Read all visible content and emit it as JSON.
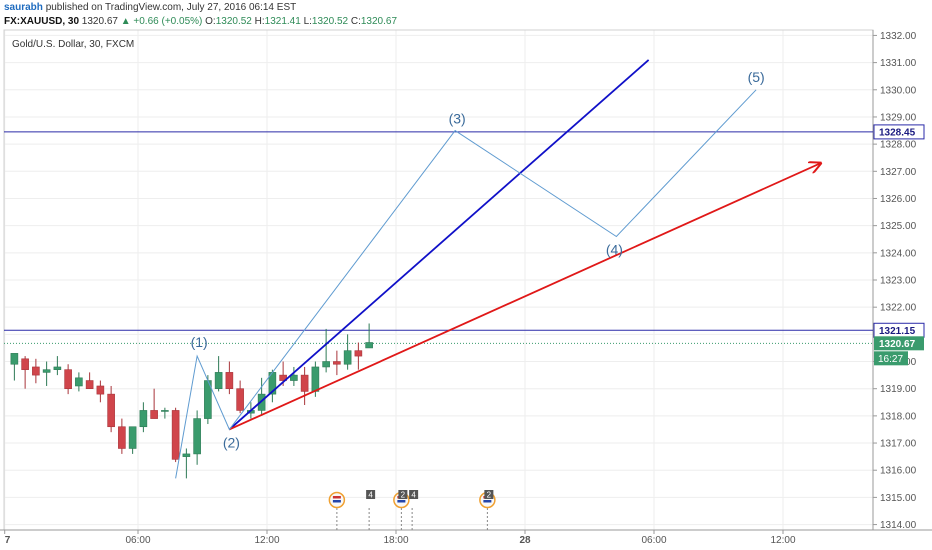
{
  "header": {
    "author": "saurabh",
    "published": "published on TradingView.com, July 27, 2016 06:14 EST",
    "symbol": "FX:XAUUSD, 30",
    "last": "1320.67",
    "change": "▲ +0.66 (+0.05%)",
    "o_label": "O:",
    "o": "1320.52",
    "h_label": "H:",
    "h": "1321.41",
    "l_label": "L:",
    "l": "1320.52",
    "c_label": "C:",
    "c": "1320.67"
  },
  "legend": {
    "title": "Gold/U.S. Dollar, 30, FXCM"
  },
  "colors": {
    "up": "#3a9b6d",
    "down": "#d0454b",
    "blue_line": "#1010c8",
    "red_line": "#e01818",
    "wave": "#5f9bd0",
    "hline": "#2a2aa8"
  },
  "chart_data": {
    "type": "candlestick",
    "title": "Gold/U.S. Dollar, 30, FXCM",
    "ylim": [
      1313.8,
      1332.2
    ],
    "y_ticks": [
      "1314.00",
      "1315.00",
      "1316.00",
      "1317.00",
      "1318.00",
      "1319.00",
      "1320.00",
      "1321.00",
      "1322.00",
      "1323.00",
      "1324.00",
      "1325.00",
      "1326.00",
      "1327.00",
      "1328.00",
      "1329.00",
      "1330.00",
      "1331.00",
      "1332.00"
    ],
    "y_tick_values": [
      1314,
      1315,
      1316,
      1317,
      1318,
      1319,
      1320,
      1321,
      1322,
      1323,
      1324,
      1325,
      1326,
      1327,
      1328,
      1329,
      1330,
      1331,
      1332
    ],
    "x_ticks": [
      {
        "label": "7",
        "bar": -0.4
      },
      {
        "label": "06:00",
        "bar": 12
      },
      {
        "label": "12:00",
        "bar": 24
      },
      {
        "label": "18:00",
        "bar": 36
      },
      {
        "label": "28",
        "bar": 48
      },
      {
        "label": "06:00",
        "bar": 60
      },
      {
        "label": "12:00",
        "bar": 72
      }
    ],
    "candles": [
      {
        "o": 1319.9,
        "h": 1320.2,
        "l": 1319.3,
        "c": 1320.3
      },
      {
        "o": 1320.1,
        "h": 1320.2,
        "l": 1319.0,
        "c": 1319.7
      },
      {
        "o": 1319.8,
        "h": 1320.1,
        "l": 1319.2,
        "c": 1319.5
      },
      {
        "o": 1319.6,
        "h": 1320.0,
        "l": 1319.1,
        "c": 1319.7
      },
      {
        "o": 1319.7,
        "h": 1320.2,
        "l": 1319.5,
        "c": 1319.8
      },
      {
        "o": 1319.7,
        "h": 1319.9,
        "l": 1318.8,
        "c": 1319.0
      },
      {
        "o": 1319.1,
        "h": 1319.6,
        "l": 1318.9,
        "c": 1319.4
      },
      {
        "o": 1319.3,
        "h": 1319.6,
        "l": 1319.0,
        "c": 1319.0
      },
      {
        "o": 1319.1,
        "h": 1319.3,
        "l": 1318.5,
        "c": 1318.8
      },
      {
        "o": 1318.8,
        "h": 1319.1,
        "l": 1317.4,
        "c": 1317.6
      },
      {
        "o": 1317.6,
        "h": 1317.9,
        "l": 1316.6,
        "c": 1316.8
      },
      {
        "o": 1316.8,
        "h": 1317.6,
        "l": 1316.6,
        "c": 1317.6
      },
      {
        "o": 1317.6,
        "h": 1318.5,
        "l": 1317.4,
        "c": 1318.2
      },
      {
        "o": 1318.2,
        "h": 1319.0,
        "l": 1317.9,
        "c": 1317.9
      },
      {
        "o": 1318.2,
        "h": 1318.3,
        "l": 1317.9,
        "c": 1318.2
      },
      {
        "o": 1318.2,
        "h": 1318.3,
        "l": 1316.3,
        "c": 1316.4
      },
      {
        "o": 1316.5,
        "h": 1316.8,
        "l": 1315.7,
        "c": 1316.6
      },
      {
        "o": 1316.6,
        "h": 1318.2,
        "l": 1316.2,
        "c": 1317.9
      },
      {
        "o": 1317.9,
        "h": 1319.5,
        "l": 1317.7,
        "c": 1319.3
      },
      {
        "o": 1319.0,
        "h": 1320.2,
        "l": 1318.9,
        "c": 1319.6
      },
      {
        "o": 1319.6,
        "h": 1320.0,
        "l": 1318.8,
        "c": 1319.0
      },
      {
        "o": 1319.0,
        "h": 1319.3,
        "l": 1318.1,
        "c": 1318.2
      },
      {
        "o": 1318.1,
        "h": 1318.5,
        "l": 1317.9,
        "c": 1318.2
      },
      {
        "o": 1318.2,
        "h": 1319.4,
        "l": 1318.0,
        "c": 1318.8
      },
      {
        "o": 1318.8,
        "h": 1319.7,
        "l": 1318.5,
        "c": 1319.6
      },
      {
        "o": 1319.5,
        "h": 1320.0,
        "l": 1319.1,
        "c": 1319.3
      },
      {
        "o": 1319.3,
        "h": 1319.8,
        "l": 1319.1,
        "c": 1319.5
      },
      {
        "o": 1319.5,
        "h": 1319.8,
        "l": 1318.4,
        "c": 1318.9
      },
      {
        "o": 1318.9,
        "h": 1320.0,
        "l": 1318.7,
        "c": 1319.8
      },
      {
        "o": 1319.8,
        "h": 1321.2,
        "l": 1319.6,
        "c": 1320.0
      },
      {
        "o": 1320.0,
        "h": 1320.4,
        "l": 1319.5,
        "c": 1319.9
      },
      {
        "o": 1319.9,
        "h": 1321.0,
        "l": 1319.7,
        "c": 1320.4
      },
      {
        "o": 1320.4,
        "h": 1320.7,
        "l": 1319.7,
        "c": 1320.2
      },
      {
        "o": 1320.5,
        "h": 1321.4,
        "l": 1320.5,
        "c": 1320.7
      }
    ],
    "horizontal_lines": [
      {
        "price": 1328.45,
        "label": "1328.45"
      },
      {
        "price": 1321.15,
        "label": "1321.15"
      }
    ],
    "last_price": {
      "price": 1320.67,
      "label": "1320.67",
      "countdown": "16:27"
    },
    "trend_lines": [
      {
        "name": "blue",
        "from": {
          "bar": 20.5,
          "price": 1317.5
        },
        "to": {
          "bar": 59.5,
          "price": 1331.1
        },
        "arrow": false
      },
      {
        "name": "red",
        "from": {
          "bar": 20.5,
          "price": 1317.5
        },
        "to": {
          "bar": 75.5,
          "price": 1327.3
        },
        "arrow": true
      }
    ],
    "wave": [
      {
        "bar": 15.5,
        "price": 1315.7,
        "label": ""
      },
      {
        "bar": 17.5,
        "price": 1320.2,
        "label": "(1)"
      },
      {
        "bar": 20.5,
        "price": 1317.5,
        "label": "(2)"
      },
      {
        "bar": 41.5,
        "price": 1328.5,
        "label": "(3)"
      },
      {
        "bar": 56.5,
        "price": 1324.6,
        "label": "(4)"
      },
      {
        "bar": 69.5,
        "price": 1330.0,
        "label": "(5)"
      }
    ],
    "event_markers": [
      {
        "bar": 30.5,
        "badge": "",
        "flag": true
      },
      {
        "bar": 33.5,
        "badge": "4",
        "flag": false
      },
      {
        "bar": 36.5,
        "badge": "2",
        "flag": true
      },
      {
        "bar": 37.5,
        "badge": "4",
        "flag": false
      },
      {
        "bar": 44.5,
        "badge": "2",
        "flag": true
      }
    ]
  }
}
